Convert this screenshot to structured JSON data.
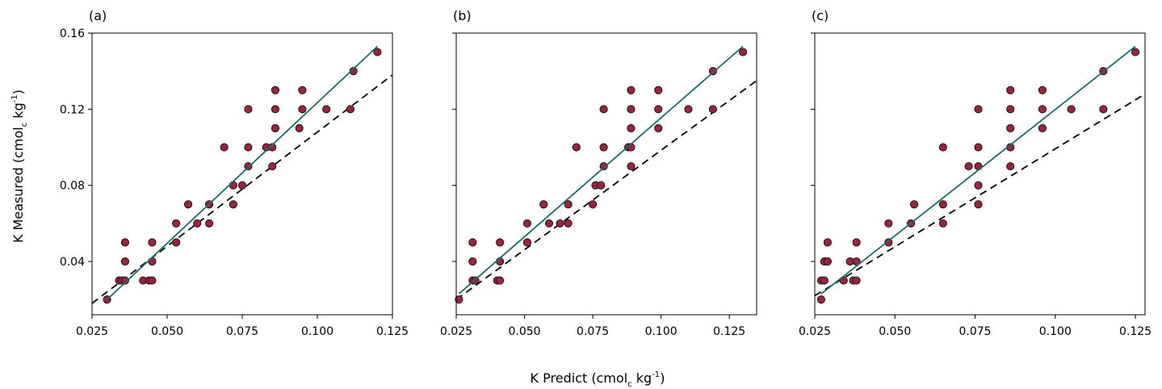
{
  "chart_data": [
    {
      "type": "scatter",
      "panel_label": "(a)",
      "xlim": [
        0.025,
        0.125
      ],
      "ylim": [
        0.012,
        0.16
      ],
      "x_ticks": [
        "0.025",
        "0.050",
        "0.075",
        "0.100",
        "0.125"
      ],
      "y_ticks": [
        "0.04",
        "0.08",
        "0.12",
        "0.16"
      ],
      "show_y_tick_labels": true,
      "points": [
        [
          0.03,
          0.02
        ],
        [
          0.034,
          0.03
        ],
        [
          0.035,
          0.03
        ],
        [
          0.036,
          0.03
        ],
        [
          0.036,
          0.04
        ],
        [
          0.036,
          0.05
        ],
        [
          0.042,
          0.03
        ],
        [
          0.044,
          0.03
        ],
        [
          0.045,
          0.03
        ],
        [
          0.045,
          0.04
        ],
        [
          0.045,
          0.05
        ],
        [
          0.053,
          0.05
        ],
        [
          0.053,
          0.06
        ],
        [
          0.057,
          0.07
        ],
        [
          0.06,
          0.06
        ],
        [
          0.064,
          0.07
        ],
        [
          0.064,
          0.06
        ],
        [
          0.069,
          0.1
        ],
        [
          0.072,
          0.07
        ],
        [
          0.072,
          0.08
        ],
        [
          0.075,
          0.08
        ],
        [
          0.077,
          0.09
        ],
        [
          0.077,
          0.1
        ],
        [
          0.077,
          0.12
        ],
        [
          0.083,
          0.1
        ],
        [
          0.085,
          0.09
        ],
        [
          0.085,
          0.1
        ],
        [
          0.086,
          0.11
        ],
        [
          0.086,
          0.12
        ],
        [
          0.086,
          0.13
        ],
        [
          0.094,
          0.11
        ],
        [
          0.095,
          0.12
        ],
        [
          0.095,
          0.13
        ],
        [
          0.103,
          0.12
        ],
        [
          0.111,
          0.12
        ],
        [
          0.112,
          0.14
        ],
        [
          0.12,
          0.15
        ]
      ],
      "fit_line": [
        [
          0.03,
          0.02
        ],
        [
          0.12,
          0.153
        ]
      ],
      "dashed_line": [
        [
          0.025,
          0.018
        ],
        [
          0.125,
          0.138
        ]
      ]
    },
    {
      "type": "scatter",
      "panel_label": "(b)",
      "xlim": [
        0.025,
        0.135
      ],
      "ylim": [
        0.012,
        0.16
      ],
      "x_ticks": [
        "0.025",
        "0.050",
        "0.075",
        "0.100",
        "0.125"
      ],
      "y_ticks": [
        "0.04",
        "0.08",
        "0.12",
        "0.16"
      ],
      "show_y_tick_labels": false,
      "points": [
        [
          0.026,
          0.02
        ],
        [
          0.031,
          0.03
        ],
        [
          0.032,
          0.03
        ],
        [
          0.031,
          0.04
        ],
        [
          0.031,
          0.05
        ],
        [
          0.04,
          0.03
        ],
        [
          0.041,
          0.03
        ],
        [
          0.041,
          0.04
        ],
        [
          0.041,
          0.05
        ],
        [
          0.051,
          0.05
        ],
        [
          0.051,
          0.06
        ],
        [
          0.057,
          0.07
        ],
        [
          0.059,
          0.06
        ],
        [
          0.063,
          0.06
        ],
        [
          0.066,
          0.06
        ],
        [
          0.066,
          0.07
        ],
        [
          0.069,
          0.1
        ],
        [
          0.075,
          0.07
        ],
        [
          0.076,
          0.08
        ],
        [
          0.078,
          0.08
        ],
        [
          0.079,
          0.09
        ],
        [
          0.079,
          0.1
        ],
        [
          0.079,
          0.12
        ],
        [
          0.088,
          0.1
        ],
        [
          0.089,
          0.09
        ],
        [
          0.089,
          0.1
        ],
        [
          0.089,
          0.11
        ],
        [
          0.089,
          0.12
        ],
        [
          0.089,
          0.13
        ],
        [
          0.099,
          0.11
        ],
        [
          0.099,
          0.12
        ],
        [
          0.099,
          0.13
        ],
        [
          0.11,
          0.12
        ],
        [
          0.119,
          0.12
        ],
        [
          0.119,
          0.14
        ],
        [
          0.13,
          0.15
        ]
      ],
      "fit_line": [
        [
          0.026,
          0.023
        ],
        [
          0.13,
          0.153
        ]
      ],
      "dashed_line": [
        [
          0.025,
          0.02
        ],
        [
          0.135,
          0.135
        ]
      ]
    },
    {
      "type": "scatter",
      "panel_label": "(c)",
      "xlim": [
        0.025,
        0.128
      ],
      "ylim": [
        0.012,
        0.16
      ],
      "x_ticks": [
        "0.025",
        "0.050",
        "0.075",
        "0.100",
        "0.125"
      ],
      "y_ticks": [
        "0.04",
        "0.08",
        "0.12",
        "0.16"
      ],
      "show_y_tick_labels": false,
      "points": [
        [
          0.027,
          0.02
        ],
        [
          0.027,
          0.03
        ],
        [
          0.028,
          0.03
        ],
        [
          0.028,
          0.04
        ],
        [
          0.029,
          0.04
        ],
        [
          0.029,
          0.05
        ],
        [
          0.034,
          0.03
        ],
        [
          0.036,
          0.04
        ],
        [
          0.037,
          0.03
        ],
        [
          0.038,
          0.03
        ],
        [
          0.038,
          0.04
        ],
        [
          0.038,
          0.05
        ],
        [
          0.048,
          0.05
        ],
        [
          0.048,
          0.06
        ],
        [
          0.055,
          0.06
        ],
        [
          0.056,
          0.07
        ],
        [
          0.065,
          0.06
        ],
        [
          0.065,
          0.07
        ],
        [
          0.065,
          0.1
        ],
        [
          0.073,
          0.09
        ],
        [
          0.076,
          0.07
        ],
        [
          0.076,
          0.08
        ],
        [
          0.076,
          0.09
        ],
        [
          0.076,
          0.1
        ],
        [
          0.076,
          0.12
        ],
        [
          0.086,
          0.09
        ],
        [
          0.086,
          0.1
        ],
        [
          0.086,
          0.11
        ],
        [
          0.086,
          0.12
        ],
        [
          0.086,
          0.13
        ],
        [
          0.096,
          0.11
        ],
        [
          0.096,
          0.12
        ],
        [
          0.096,
          0.13
        ],
        [
          0.105,
          0.12
        ],
        [
          0.115,
          0.12
        ],
        [
          0.115,
          0.14
        ],
        [
          0.125,
          0.15
        ]
      ],
      "fit_line": [
        [
          0.027,
          0.023
        ],
        [
          0.125,
          0.153
        ]
      ],
      "dashed_line": [
        [
          0.025,
          0.022
        ],
        [
          0.128,
          0.128
        ]
      ]
    }
  ],
  "axis_titles": {
    "x_main": "K Predict (cmol",
    "x_sub": "c",
    "x_mid": " kg",
    "x_sup": "-1",
    "x_end": ")",
    "y_main": "K Measured (cmol",
    "y_sub": "c",
    "y_mid": " kg",
    "y_sup": "-1",
    "y_end": ")"
  },
  "colors": {
    "marker_fill": "#9b2340",
    "marker_edge": "#1a1a1a",
    "fit_line": "#1b6b6b",
    "dashed_line": "#000000",
    "frame": "#000000"
  }
}
